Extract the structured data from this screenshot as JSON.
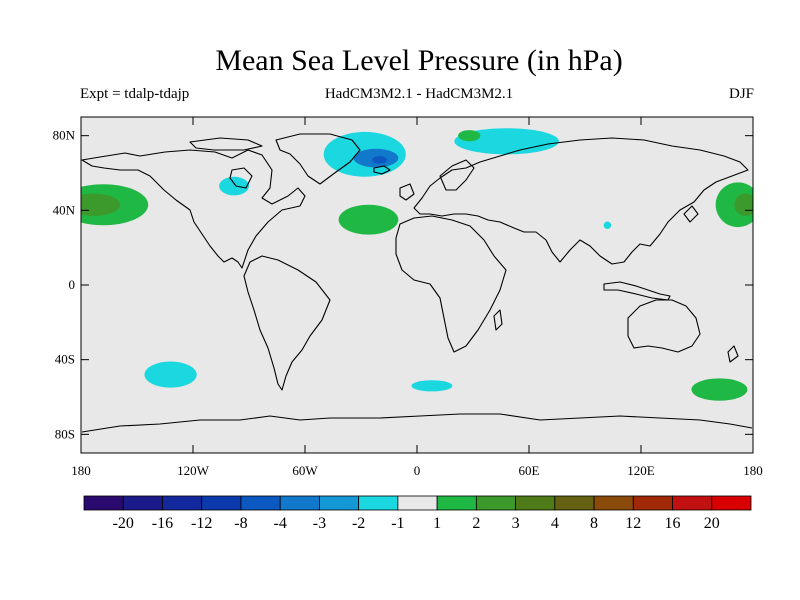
{
  "title": "Mean Sea Level Pressure (in hPa)",
  "subtitle_left": "Expt = tdalp-tdajp",
  "subtitle_center": "HadCM3M2.1 - HadCM3M2.1",
  "subtitle_right": "DJF",
  "lat_ticks": [
    {
      "label": "80N",
      "lat": 80
    },
    {
      "label": "40N",
      "lat": 40
    },
    {
      "label": "0",
      "lat": 0
    },
    {
      "label": "40S",
      "lat": -40
    },
    {
      "label": "80S",
      "lat": -80
    }
  ],
  "lon_ticks": [
    {
      "label": "180",
      "lon": -180
    },
    {
      "label": "120W",
      "lon": -120
    },
    {
      "label": "60W",
      "lon": -60
    },
    {
      "label": "0",
      "lon": 0
    },
    {
      "label": "60E",
      "lon": 60
    },
    {
      "label": "120E",
      "lon": 120
    },
    {
      "label": "180",
      "lon": 180
    }
  ],
  "colors": {
    "background": "#e8e8e8",
    "land_outline": "#000000"
  },
  "colorbar": {
    "colors": [
      "#2a0a6e",
      "#1b1a8a",
      "#14289e",
      "#0c3aac",
      "#0a58c0",
      "#1278cc",
      "#1598d6",
      "#1ad7e0",
      "#e8e8e8",
      "#20b845",
      "#3c9a2c",
      "#4e7a18",
      "#666012",
      "#8a4a0a",
      "#a02a08",
      "#c01010",
      "#d80000"
    ],
    "labels": [
      "-20",
      "-16",
      "-12",
      "-8",
      "-4",
      "-3",
      "-2",
      "-1",
      "1",
      "2",
      "3",
      "4",
      "8",
      "12",
      "16",
      "20"
    ]
  },
  "chart_data": {
    "type": "map",
    "projection": "equirectangular",
    "variable": "Mean Sea Level Pressure difference",
    "units": "hPa",
    "season": "DJF",
    "lon_range": [
      -180,
      180
    ],
    "lat_range": [
      -90,
      90
    ],
    "levels": [
      -20,
      -16,
      -12,
      -8,
      -4,
      -3,
      -2,
      -1,
      1,
      2,
      3,
      4,
      8,
      12,
      16,
      20
    ],
    "anomaly_regions": [
      {
        "level": "-1 to -2",
        "lon": -28,
        "lat": 70,
        "rx": 22,
        "ry": 12
      },
      {
        "level": "-2 to -3",
        "lon": -22,
        "lat": 68,
        "rx": 12,
        "ry": 5
      },
      {
        "level": "-3 to -4",
        "lon": -20,
        "lat": 67,
        "rx": 4,
        "ry": 2
      },
      {
        "level": "-1 to -2",
        "lon": 48,
        "lat": 77,
        "rx": 28,
        "ry": 7
      },
      {
        "level": "-1 to -2",
        "lon": -98,
        "lat": 53,
        "rx": 8,
        "ry": 5
      },
      {
        "level": "-1 to -2",
        "lon": 102,
        "lat": 32,
        "rx": 2,
        "ry": 2
      },
      {
        "level": "-1 to -2",
        "lon": -132,
        "lat": -48,
        "rx": 14,
        "ry": 7
      },
      {
        "level": "-1 to -2",
        "lon": 8,
        "lat": -54,
        "rx": 11,
        "ry": 3
      },
      {
        "level": "1 to 2",
        "lon": -168,
        "lat": 43,
        "rx": 24,
        "ry": 11
      },
      {
        "level": "2 to 3",
        "lon": -173,
        "lat": 43,
        "rx": 14,
        "ry": 6
      },
      {
        "level": "1 to 2",
        "lon": 172,
        "lat": 43,
        "rx": 12,
        "ry": 12
      },
      {
        "level": "2 to 3",
        "lon": 176,
        "lat": 43,
        "rx": 6,
        "ry": 6
      },
      {
        "level": "1 to 2",
        "lon": -26,
        "lat": 35,
        "rx": 16,
        "ry": 8
      },
      {
        "level": "1 to 2",
        "lon": 162,
        "lat": -56,
        "rx": 15,
        "ry": 6
      },
      {
        "level": "1 to 2",
        "lon": 28,
        "lat": 80,
        "rx": 6,
        "ry": 3
      }
    ]
  }
}
